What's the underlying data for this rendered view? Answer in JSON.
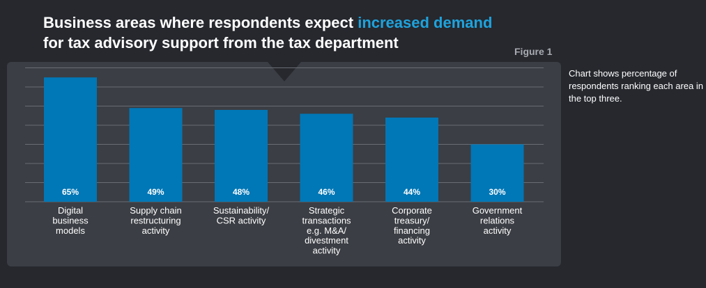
{
  "title": {
    "part1": "Business areas where respondents expect ",
    "highlight": "increased demand",
    "part2": "for tax advisory support from the tax department"
  },
  "figure_label": "Figure 1",
  "note": "Chart shows percentage of respondents ranking each area in the top three.",
  "colors": {
    "background": "#26282e",
    "panel": "#3b3e44",
    "bar": "#0077b6",
    "highlight": "#1ea3dd",
    "grid": "#6a6d73"
  },
  "chart_data": {
    "type": "bar",
    "title": "Business areas where respondents expect increased demand for tax advisory support from the tax department",
    "categories": [
      [
        "Digital",
        "business",
        "models"
      ],
      [
        "Supply chain",
        "restructuring",
        "activity"
      ],
      [
        "Sustainability/",
        "CSR activity"
      ],
      [
        "Strategic",
        "transactions",
        "e.g. M&A/",
        "divestment",
        "activity"
      ],
      [
        "Corporate",
        "treasury/",
        "financing",
        "activity"
      ],
      [
        "Government",
        "relations",
        "activity"
      ]
    ],
    "values": [
      65,
      49,
      48,
      46,
      44,
      30
    ],
    "value_labels": [
      "65%",
      "49%",
      "48%",
      "46%",
      "44%",
      "30%"
    ],
    "ylim": [
      0,
      70
    ],
    "grid": true,
    "xlabel": "",
    "ylabel": ""
  }
}
